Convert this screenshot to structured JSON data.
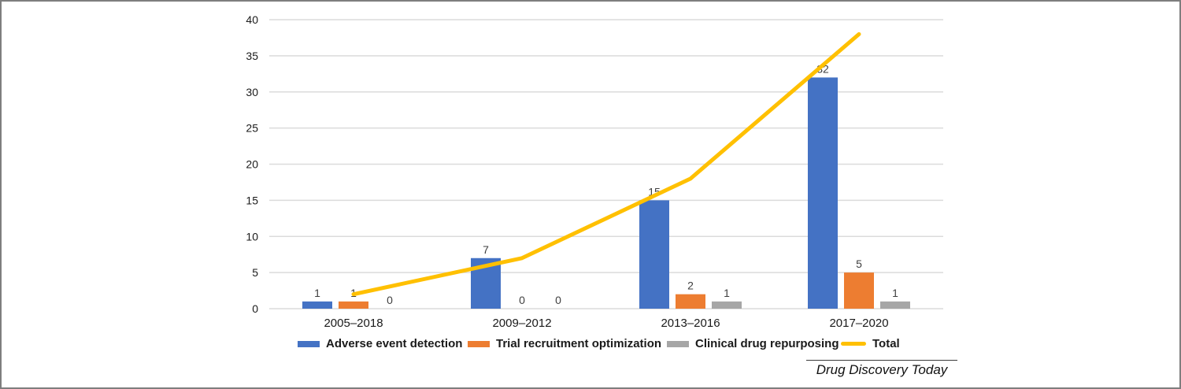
{
  "figure": {
    "source_label": "Drug Discovery Today"
  },
  "chart_data": {
    "type": "bar",
    "title": "",
    "xlabel": "",
    "ylabel": "",
    "categories": [
      "2005–2018",
      "2009–2012",
      "2013–2016",
      "2017–2020"
    ],
    "series": [
      {
        "name": "Adverse event detection",
        "type": "bar",
        "color": "#4472C4",
        "values": [
          1,
          7,
          15,
          32
        ]
      },
      {
        "name": "Trial recruitment optimization",
        "type": "bar",
        "color": "#ED7D31",
        "values": [
          1,
          0,
          2,
          5
        ]
      },
      {
        "name": "Clinical drug repurposing",
        "type": "bar",
        "color": "#A6A6A6",
        "values": [
          0,
          0,
          1,
          1
        ]
      },
      {
        "name": "Total",
        "type": "line",
        "color": "#FFC000",
        "values": [
          2,
          7,
          18,
          38
        ]
      }
    ],
    "ylim": [
      0,
      40
    ],
    "ytick_step": 5,
    "grid": true,
    "value_labels": true,
    "legend_position": "bottom",
    "colors": {
      "gridline": "#DBDBDB",
      "axis_text": "#1a1a1a",
      "value_label_text": "#3f3f3f",
      "background": "#ffffff",
      "border": "#7e7e7e"
    }
  }
}
